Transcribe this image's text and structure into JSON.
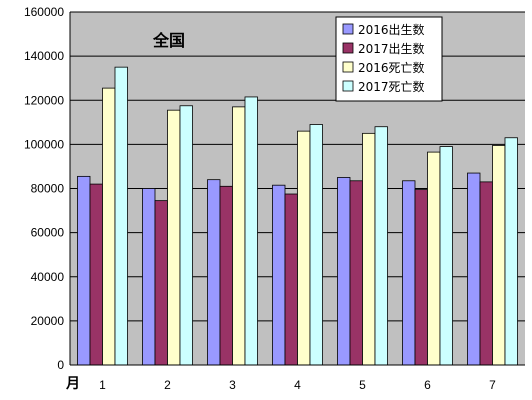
{
  "chart_data": {
    "type": "bar",
    "title": "全国",
    "xlabel": "月",
    "ylabel": "",
    "categories": [
      "1",
      "2",
      "3",
      "4",
      "5",
      "6",
      "7"
    ],
    "ylim": [
      0,
      160000
    ],
    "yticks": [
      0,
      20000,
      40000,
      60000,
      80000,
      100000,
      120000,
      140000,
      160000
    ],
    "grid": true,
    "legend_position": "top-right",
    "series": [
      {
        "name": "2016出生数",
        "color": "#9999ff",
        "values": [
          85500,
          80000,
          84000,
          81500,
          85000,
          83500,
          87000
        ]
      },
      {
        "name": "2017出生数",
        "color": "#993366",
        "values": [
          82000,
          74500,
          81000,
          77500,
          83500,
          79500,
          83000
        ]
      },
      {
        "name": "2016死亡数",
        "color": "#ffffcc",
        "values": [
          125500,
          115500,
          117000,
          106000,
          105000,
          96500,
          99500
        ]
      },
      {
        "name": "2017死亡数",
        "color": "#ccffff",
        "values": [
          135000,
          117500,
          121500,
          109000,
          108000,
          99000,
          103000
        ]
      }
    ]
  }
}
